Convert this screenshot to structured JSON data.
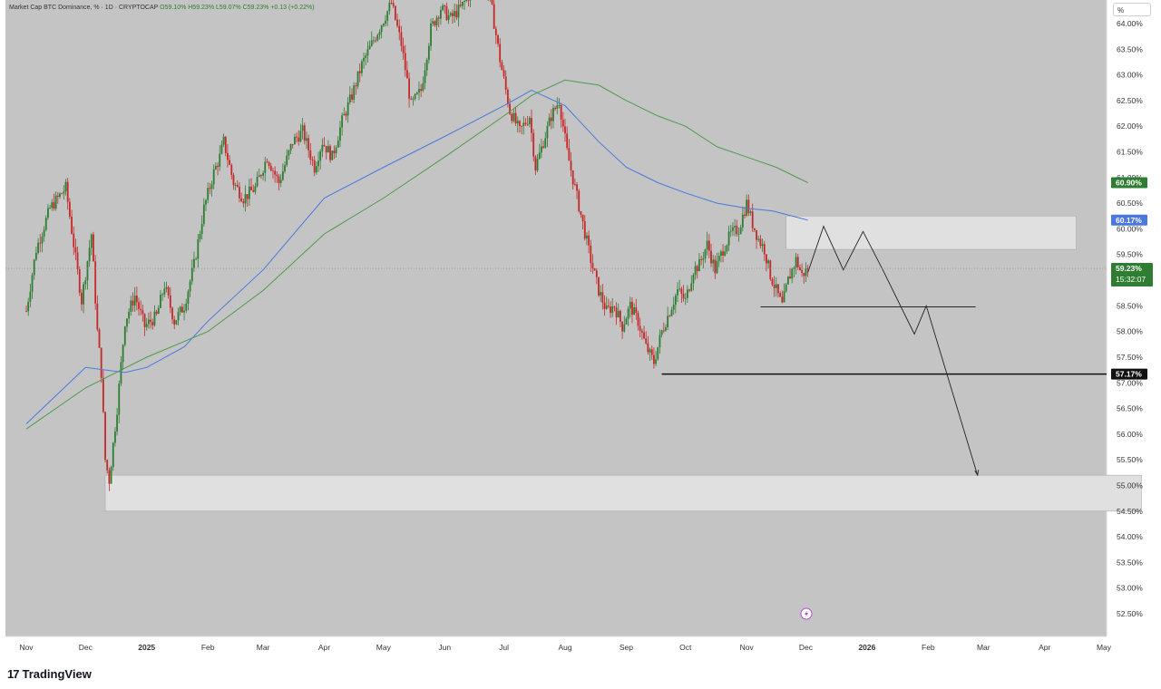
{
  "header": {
    "instrument": "Market Cap BTC Dominance, % · 1D · CRYPTOCAP",
    "ohlc": "O59.10% H59.23% L59.07% C59.23% +0.13 (+0.22%)"
  },
  "scale_mode_label": "%",
  "brand": {
    "logo_icon": "tradingview-logo-icon",
    "name": "TradingView"
  },
  "colors": {
    "background": "#c4c4c4",
    "up_candle": "#2e7d32",
    "down_candle": "#c62828",
    "ma_blue": "#4a78e0",
    "ma_green": "#4f9a4f",
    "zone_fill": "#e0e0e0",
    "price_tag": "#2e7d32"
  },
  "chart_data": {
    "type": "line",
    "title": "Market Cap BTC Dominance, %",
    "interval": "1D",
    "ylim": [
      52.4,
      64.4
    ],
    "y_ticks": [
      "52.50%",
      "53.00%",
      "53.50%",
      "54.00%",
      "54.50%",
      "55.00%",
      "55.50%",
      "56.00%",
      "56.50%",
      "57.00%",
      "57.50%",
      "58.00%",
      "58.50%",
      "59.00%",
      "59.50%",
      "60.00%",
      "60.50%",
      "61.00%",
      "61.50%",
      "62.00%",
      "62.50%",
      "63.00%",
      "63.50%",
      "64.00%"
    ],
    "x_ticks": [
      "Nov",
      "Dec",
      "2025",
      "Feb",
      "Mar",
      "Apr",
      "May",
      "Jun",
      "Jul",
      "Aug",
      "Sep",
      "Oct",
      "Nov",
      "Dec",
      "2026",
      "Feb",
      "Mar",
      "Apr",
      "May"
    ],
    "x_tick_days": [
      0,
      30,
      61,
      92,
      120,
      151,
      181,
      212,
      242,
      273,
      304,
      334,
      365,
      395,
      426,
      457,
      485,
      516,
      546
    ],
    "price_series": {
      "name": "BTC Dominance (close, approx.)",
      "days": [
        0,
        5,
        12,
        20,
        28,
        33,
        36,
        38,
        40,
        42,
        46,
        50,
        55,
        60,
        66,
        70,
        75,
        80,
        85,
        90,
        95,
        98,
        100,
        105,
        110,
        116,
        122,
        128,
        135,
        140,
        146,
        150,
        155,
        160,
        165,
        170,
        175,
        180,
        185,
        190,
        195,
        200,
        205,
        210,
        215,
        220,
        225,
        230,
        235,
        240,
        245,
        250,
        255,
        258,
        262,
        266,
        270,
        274,
        278,
        282,
        286,
        290,
        294,
        298,
        302,
        306,
        310,
        314,
        318,
        322,
        326,
        330,
        334,
        338,
        341,
        345,
        349,
        353,
        357,
        361,
        365,
        368,
        371,
        374,
        377,
        380,
        383,
        386,
        390,
        393,
        396
      ],
      "values": [
        58.4,
        59.6,
        60.4,
        60.8,
        58.6,
        59.9,
        58.0,
        57.2,
        55.5,
        55.1,
        56.5,
        58.2,
        58.7,
        58.1,
        58.3,
        58.9,
        58.2,
        58.5,
        59.3,
        60.4,
        61.1,
        61.4,
        61.7,
        60.9,
        60.6,
        60.8,
        61.4,
        60.9,
        61.7,
        61.9,
        61.2,
        61.7,
        61.4,
        62.1,
        62.6,
        63.2,
        63.6,
        64.0,
        64.4,
        63.6,
        62.4,
        62.7,
        63.9,
        64.3,
        64.1,
        64.3,
        64.6,
        64.9,
        64.5,
        63.3,
        62.3,
        61.9,
        62.2,
        61.2,
        61.7,
        62.2,
        62.5,
        61.5,
        60.8,
        60.1,
        59.4,
        58.8,
        58.4,
        58.5,
        58.1,
        58.5,
        58.2,
        57.7,
        57.4,
        58.0,
        58.4,
        58.8,
        58.6,
        59.2,
        59.3,
        59.7,
        59.2,
        59.6,
        59.9,
        60.0,
        60.5,
        60.1,
        59.8,
        59.6,
        59.1,
        58.8,
        58.5,
        59.0,
        59.4,
        59.1,
        59.23
      ]
    },
    "ma_series": [
      {
        "days": [
          0,
          30,
          50,
          61,
          80,
          92,
          120,
          151,
          181,
          212,
          242,
          256,
          273,
          290,
          304,
          320,
          334,
          350,
          365,
          378,
          396
        ],
        "values": [
          56.2,
          57.3,
          57.2,
          57.3,
          57.7,
          58.2,
          59.2,
          60.6,
          61.2,
          61.8,
          62.4,
          62.7,
          62.4,
          61.7,
          61.2,
          60.9,
          60.7,
          60.5,
          60.4,
          60.35,
          60.17
        ]
      },
      {
        "days": [
          0,
          30,
          61,
          92,
          120,
          151,
          181,
          212,
          242,
          256,
          273,
          290,
          304,
          320,
          334,
          350,
          365,
          380,
          396
        ],
        "values": [
          56.1,
          56.9,
          57.5,
          58.0,
          58.8,
          59.9,
          60.6,
          61.4,
          62.2,
          62.6,
          62.9,
          62.8,
          62.5,
          62.2,
          62.0,
          61.6,
          61.4,
          61.2,
          60.9
        ]
      }
    ],
    "last_price_label": "59.23%",
    "countdown_label": "15:32:07",
    "price_tags": [
      "60.90%",
      "60.17%",
      "57.17%"
    ],
    "levels": [
      {
        "value": 58.48,
        "from_day": 372,
        "to_day": 481
      },
      {
        "value": 57.17,
        "from_day": 322,
        "to_day": 565
      }
    ],
    "zones": [
      {
        "top": 60.25,
        "bottom": 59.6,
        "from_day": 385,
        "to_day": 532
      },
      {
        "top": 55.2,
        "bottom": 54.5,
        "from_day": 40,
        "to_day": 565
      }
    ],
    "projection_path": {
      "days": [
        396,
        404,
        414,
        424,
        434,
        450,
        456,
        482
      ],
      "values": [
        59.15,
        60.05,
        59.2,
        59.95,
        59.2,
        57.95,
        58.5,
        55.2
      ]
    },
    "grid": false,
    "legend": "top-left"
  }
}
